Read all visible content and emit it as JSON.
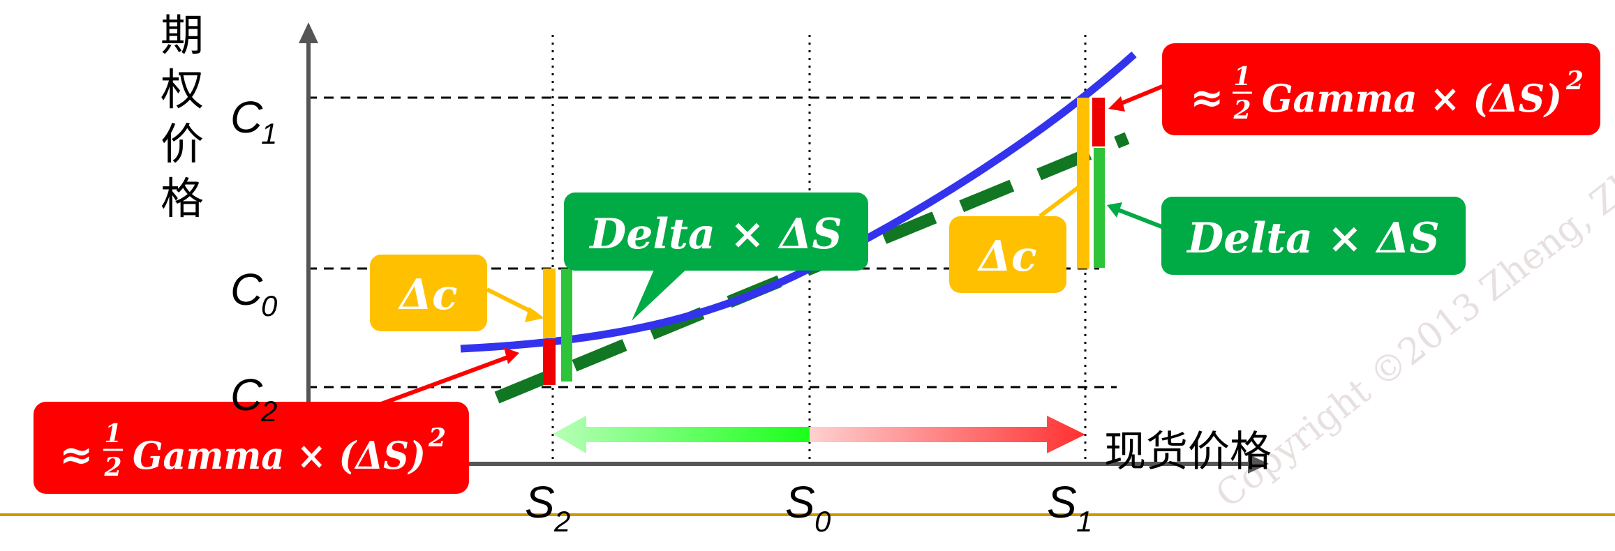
{
  "y_axis_label": [
    "期",
    "权",
    "价",
    "格"
  ],
  "x_axis_label": "现货价格",
  "y_ticks": {
    "c1": {
      "main": "C",
      "sub": "1"
    },
    "c0": {
      "main": "C",
      "sub": "0"
    },
    "c2": {
      "main": "C",
      "sub": "2"
    }
  },
  "x_ticks": {
    "s2": {
      "main": "S",
      "sub": "2"
    },
    "s0": {
      "main": "S",
      "sub": "0"
    },
    "s1": {
      "main": "S",
      "sub": "1"
    }
  },
  "callouts": {
    "gamma_right": {
      "approx": "≈",
      "num": "1",
      "den": "2",
      "text": "Gamma × (ΔS)",
      "exp": "2"
    },
    "gamma_left": {
      "approx": "≈",
      "num": "1",
      "den": "2",
      "text": "Gamma × (ΔS)",
      "exp": "2"
    },
    "delta_right": "Delta × ΔS",
    "delta_left": "Delta × ΔS",
    "dc_right": "Δc",
    "dc_left": "Δc"
  },
  "watermark": "Copyright ©2013  Zheng, Zh",
  "colors": {
    "axis": "#555555",
    "curve": "#3333ee",
    "tangent": "#117722",
    "gamma_box": "#ff0000",
    "delta_box": "#00aa44",
    "dc_box": "#ffc000",
    "bottom_rule": "#cc9900"
  }
}
